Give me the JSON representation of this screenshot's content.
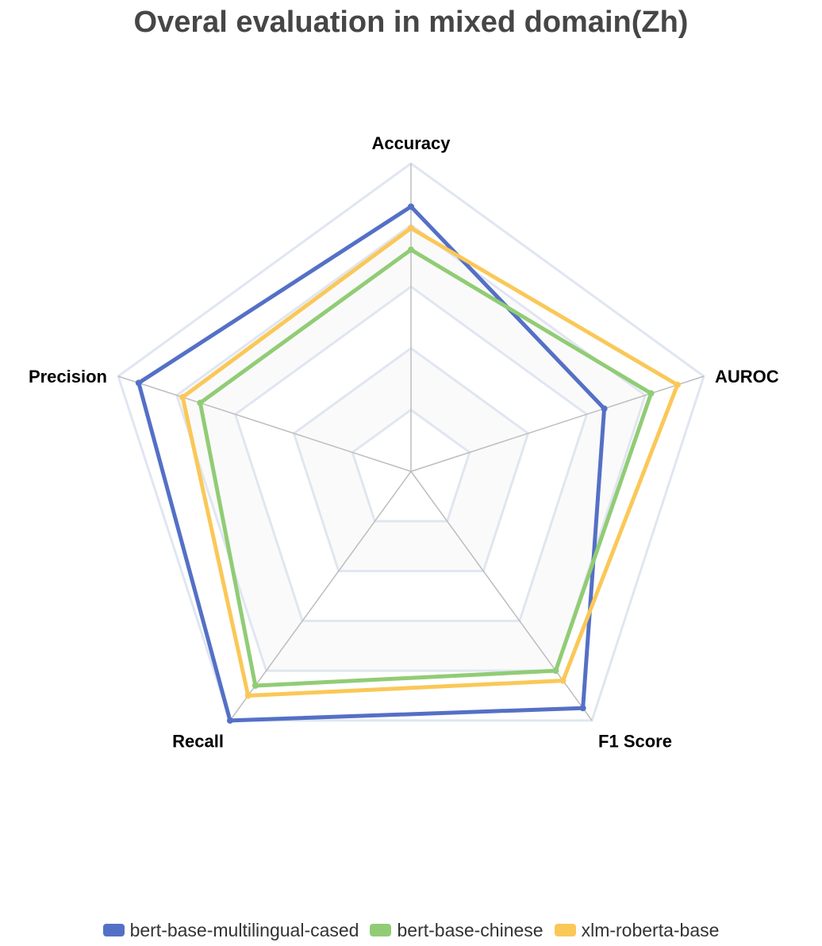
{
  "chart_data": {
    "type": "radar",
    "title": "Overal evaluation in mixed domain(Zh)",
    "indicators": [
      "Accuracy",
      "AUROC",
      "F1 Score",
      "Recall",
      "Precision"
    ],
    "range": [
      0,
      1
    ],
    "split_number": 5,
    "grid": true,
    "legend_position": "bottom-center",
    "series": [
      {
        "name": "bert-base-multilingual-cased",
        "color": "#5470c6",
        "values": [
          0.86,
          0.66,
          0.95,
          1.0,
          0.93
        ]
      },
      {
        "name": "bert-base-chinese",
        "color": "#91cc75",
        "values": [
          0.72,
          0.82,
          0.8,
          0.86,
          0.72
        ]
      },
      {
        "name": "xlm-roberta-base",
        "color": "#fac858",
        "values": [
          0.79,
          0.91,
          0.84,
          0.9,
          0.78
        ]
      }
    ]
  }
}
